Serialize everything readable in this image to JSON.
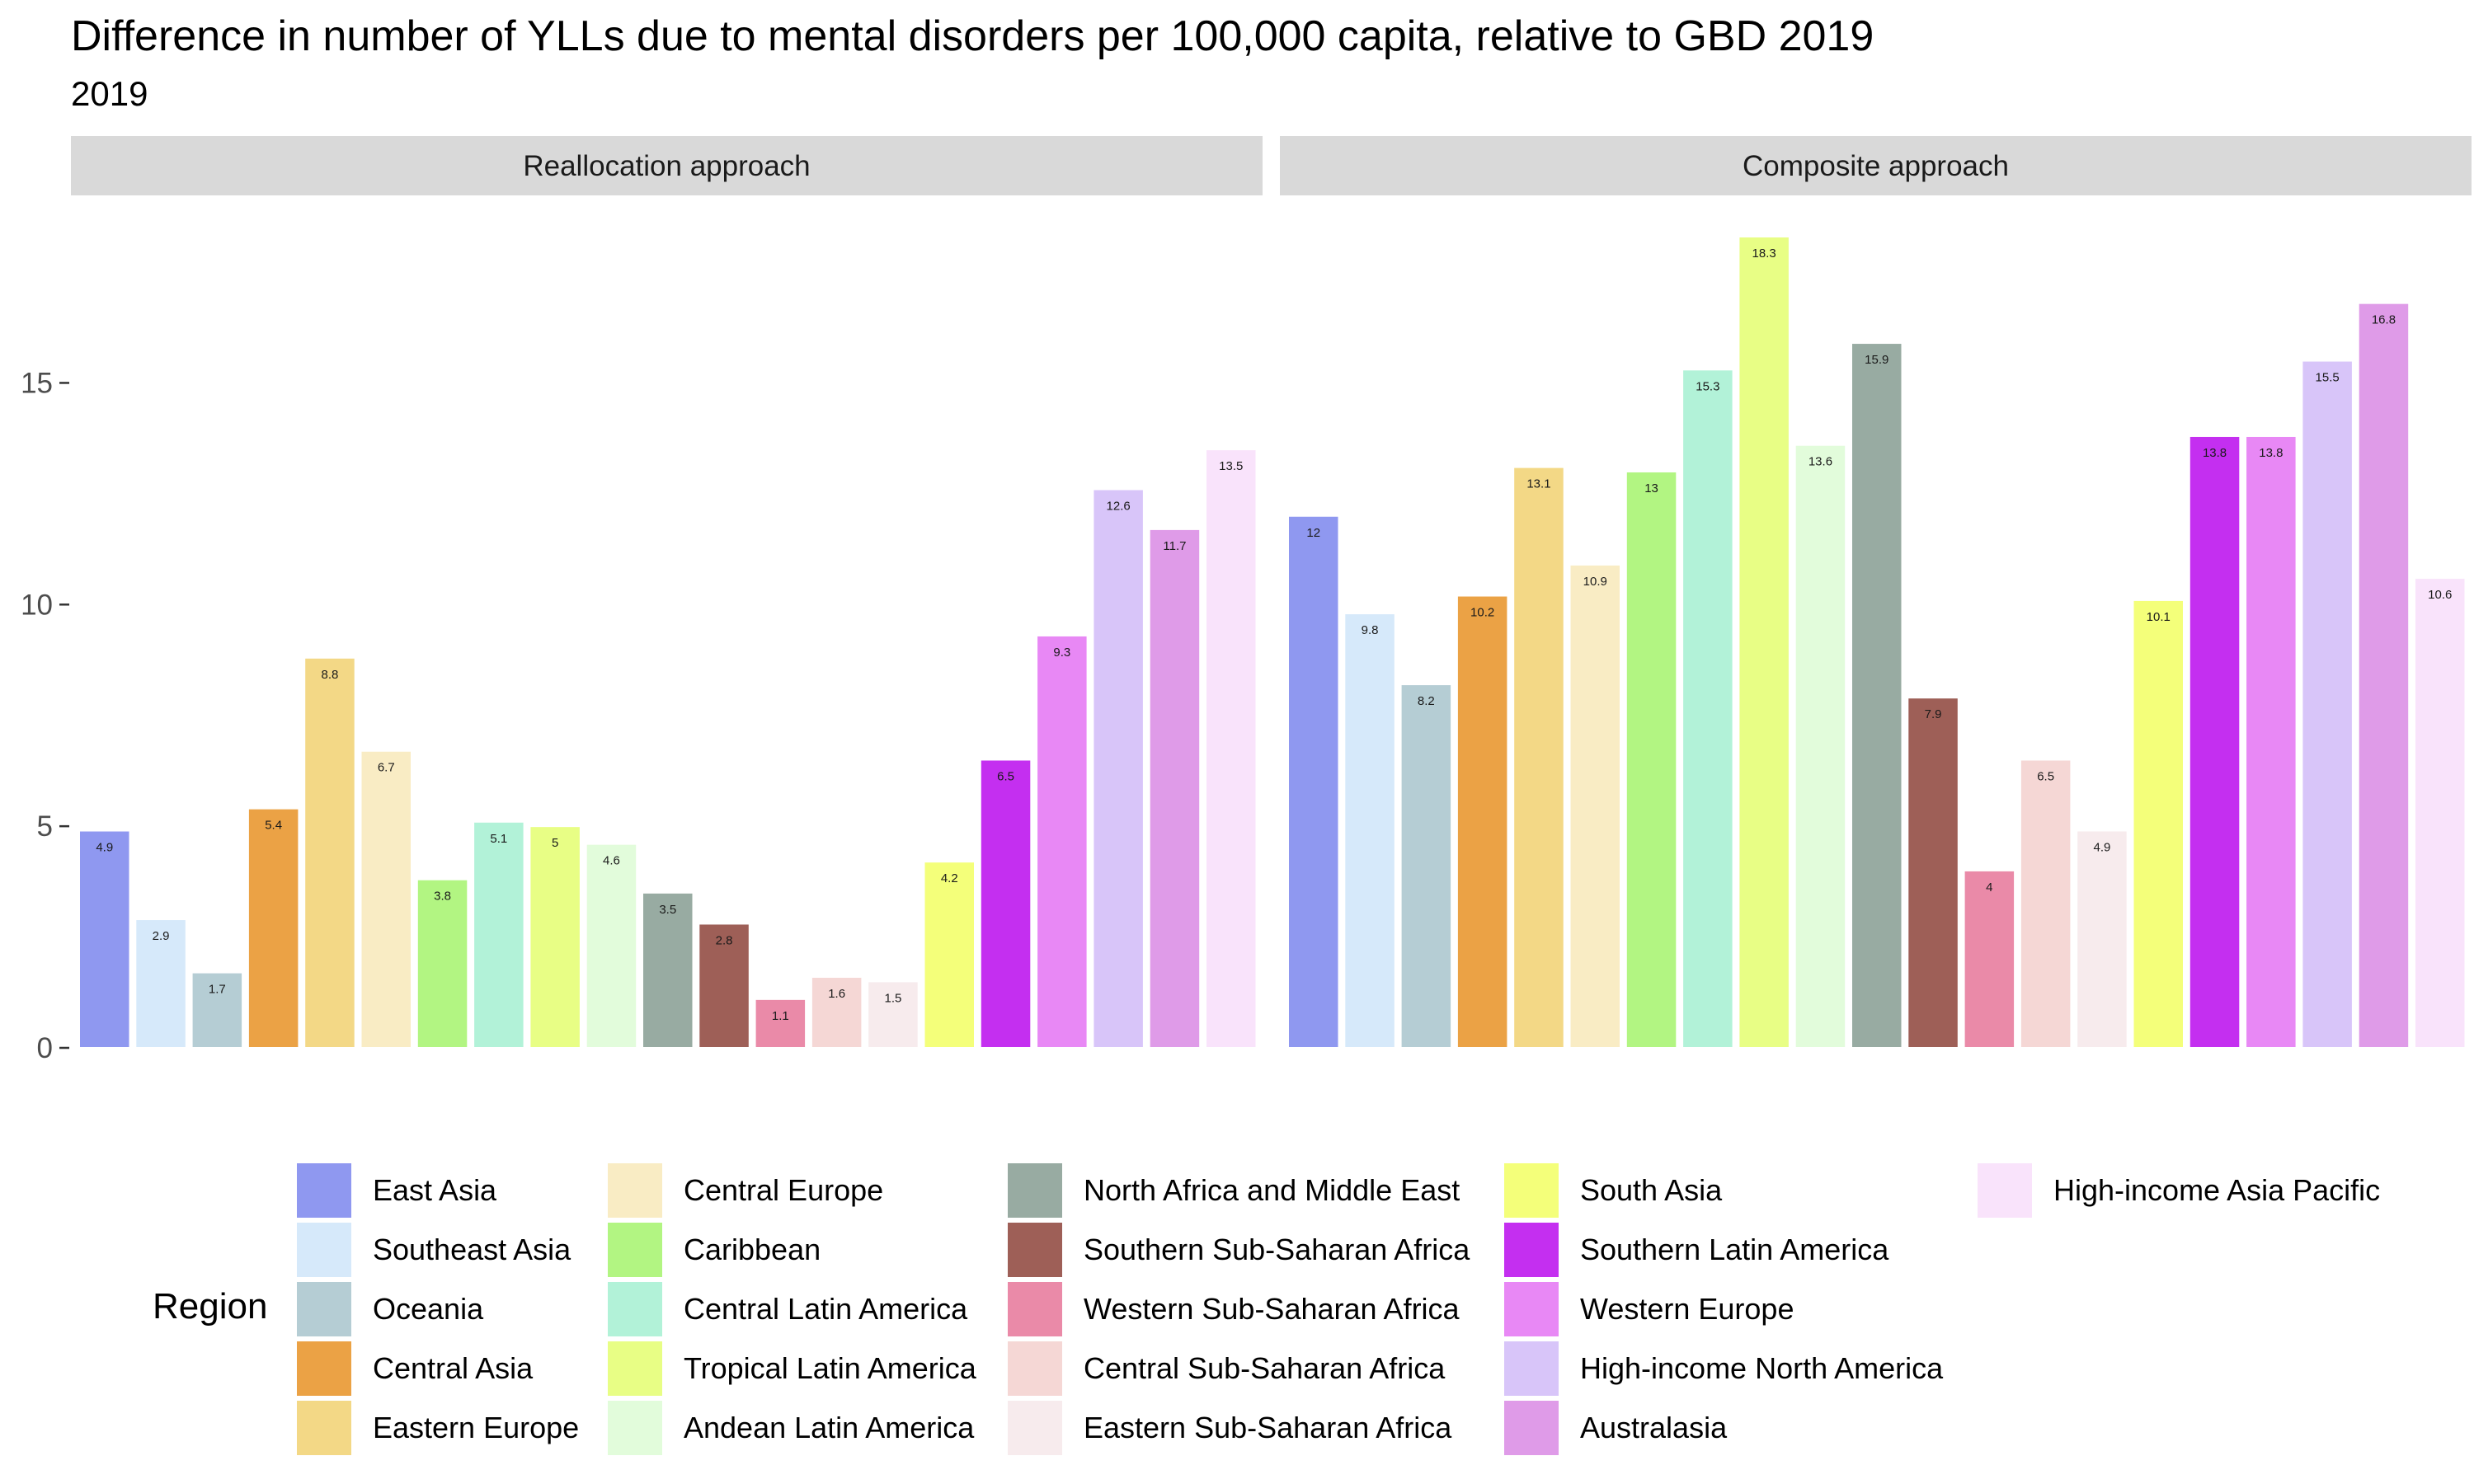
{
  "title": "Difference in number of YLLs due to mental disorders per 100,000 capita, relative to GBD 2019",
  "subtitle": "2019",
  "legend_title": "Region",
  "chart_data": {
    "type": "bar",
    "title": "Difference in number of YLLs due to mental disorders per 100,000 capita, relative to GBD 2019",
    "subtitle": "2019",
    "xlabel": "",
    "ylabel": "",
    "ylim": [
      0,
      18.3
    ],
    "yticks": [
      0,
      5,
      10,
      15
    ],
    "grid": false,
    "legend_position": "bottom",
    "legend_title": "Region",
    "categories": [
      "East Asia",
      "Southeast Asia",
      "Oceania",
      "Central Asia",
      "Eastern Europe",
      "Central Europe",
      "Caribbean",
      "Central Latin America",
      "Tropical Latin America",
      "Andean Latin America",
      "North Africa and Middle East",
      "Southern Sub-Saharan Africa",
      "Western Sub-Saharan Africa",
      "Central Sub-Saharan Africa",
      "Eastern Sub-Saharan Africa",
      "South Asia",
      "Southern Latin America",
      "Western Europe",
      "High-income North America",
      "Australasia",
      "High-income Asia Pacific"
    ],
    "colors": [
      "#8f98f0",
      "#d6e9fa",
      "#b5cdd4",
      "#eba245",
      "#f3d886",
      "#f9ecc4",
      "#b2f582",
      "#b2f2d8",
      "#e8fe85",
      "#e2fcdb",
      "#98aba2",
      "#9e5f57",
      "#ea8aa8",
      "#f5d7d5",
      "#f7ebed",
      "#f4ff7a",
      "#c42ff0",
      "#e888f5",
      "#d8c5f9",
      "#df9be8",
      "#f9e3fb"
    ],
    "panels": [
      {
        "name": "Reallocation approach",
        "values": [
          4.9,
          2.9,
          1.7,
          5.4,
          8.8,
          6.7,
          3.8,
          5.1,
          5,
          4.6,
          3.5,
          2.8,
          1.1,
          1.6,
          1.5,
          4.2,
          6.5,
          9.3,
          12.6,
          11.7,
          13.5
        ]
      },
      {
        "name": "Composite approach",
        "values": [
          12,
          9.8,
          8.2,
          10.2,
          13.1,
          10.9,
          13,
          15.3,
          18.3,
          13.6,
          15.9,
          7.9,
          4,
          6.5,
          4.9,
          10.1,
          13.8,
          13.8,
          15.5,
          16.8,
          10.6
        ]
      }
    ]
  }
}
